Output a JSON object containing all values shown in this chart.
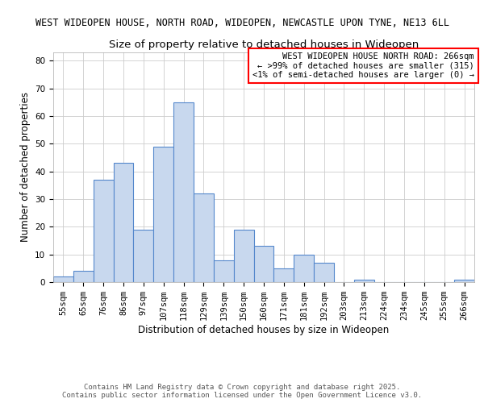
{
  "title_line1": "WEST WIDEOPEN HOUSE, NORTH ROAD, WIDEOPEN, NEWCASTLE UPON TYNE, NE13 6LL",
  "title_line2": "Size of property relative to detached houses in Wideopen",
  "xlabel": "Distribution of detached houses by size in Wideopen",
  "ylabel": "Number of detached properties",
  "categories": [
    "55sqm",
    "65sqm",
    "76sqm",
    "86sqm",
    "97sqm",
    "107sqm",
    "118sqm",
    "129sqm",
    "139sqm",
    "150sqm",
    "160sqm",
    "171sqm",
    "181sqm",
    "192sqm",
    "203sqm",
    "213sqm",
    "224sqm",
    "234sqm",
    "245sqm",
    "255sqm",
    "266sqm"
  ],
  "values": [
    2,
    4,
    37,
    43,
    19,
    49,
    65,
    32,
    8,
    19,
    13,
    5,
    10,
    7,
    0,
    1,
    0,
    0,
    0,
    0,
    1
  ],
  "bar_color": "#c8d8ee",
  "bar_edge_color": "#5588cc",
  "annotation_title": "WEST WIDEOPEN HOUSE NORTH ROAD: 266sqm",
  "annotation_line2": "← >99% of detached houses are smaller (315)",
  "annotation_line3": "<1% of semi-detached houses are larger (0) →",
  "annotation_box_color": "#ffffff",
  "annotation_box_edge_color": "#ff0000",
  "ylim": [
    0,
    83
  ],
  "yticks": [
    0,
    10,
    20,
    30,
    40,
    50,
    60,
    70,
    80
  ],
  "footer_line1": "Contains HM Land Registry data © Crown copyright and database right 2025.",
  "footer_line2": "Contains public sector information licensed under the Open Government Licence v3.0.",
  "title_fontsize": 8.5,
  "subtitle_fontsize": 9.5,
  "axis_label_fontsize": 8.5,
  "tick_fontsize": 7.5,
  "annotation_fontsize": 7.5,
  "footer_fontsize": 6.5
}
